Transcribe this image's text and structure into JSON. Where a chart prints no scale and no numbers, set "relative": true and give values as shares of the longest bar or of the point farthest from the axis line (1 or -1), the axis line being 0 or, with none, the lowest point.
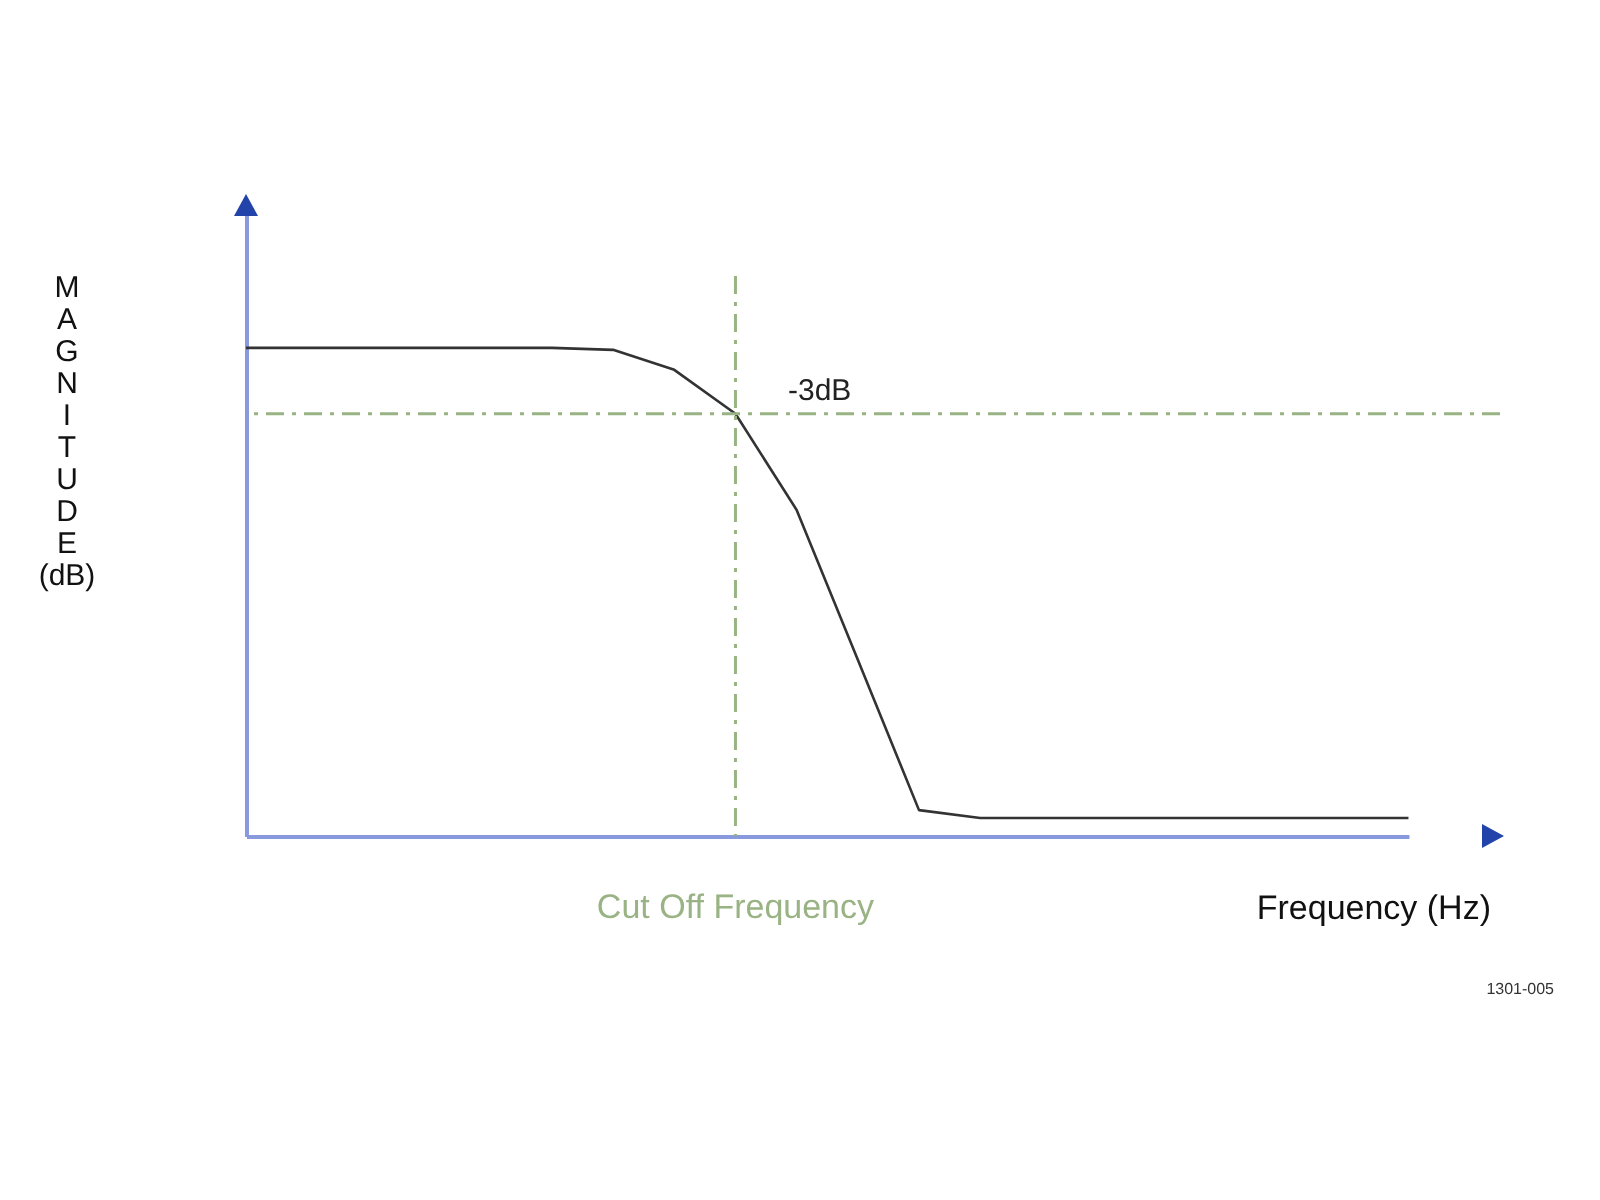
{
  "chart_data": {
    "type": "line",
    "relative": true,
    "xlabel": "Frequency (Hz)",
    "ylabel": "MAGNITUDE (dB)",
    "categories": [
      null,
      null,
      null,
      null,
      null,
      null,
      null,
      null,
      null,
      null,
      null,
      null,
      null,
      null,
      null,
      null,
      null,
      null,
      null,
      null
    ],
    "series": [
      {
        "color": "#333333",
        "values": [
          1,
          1,
          1,
          1,
          1,
          1,
          0.996,
          0.955,
          0.865,
          0.668,
          0.361,
          0.053,
          0.037,
          0.037,
          0.037,
          0.037,
          0.037,
          0.037,
          0.037,
          0.037
        ]
      }
    ],
    "ref_lines": [
      {
        "axis": "y",
        "value": 0.865,
        "label": "-3dB",
        "color": "#99b384",
        "line_style": "dashed"
      }
    ],
    "annotations": [
      "Cut Off Frequency",
      "1301-005"
    ]
  }
}
